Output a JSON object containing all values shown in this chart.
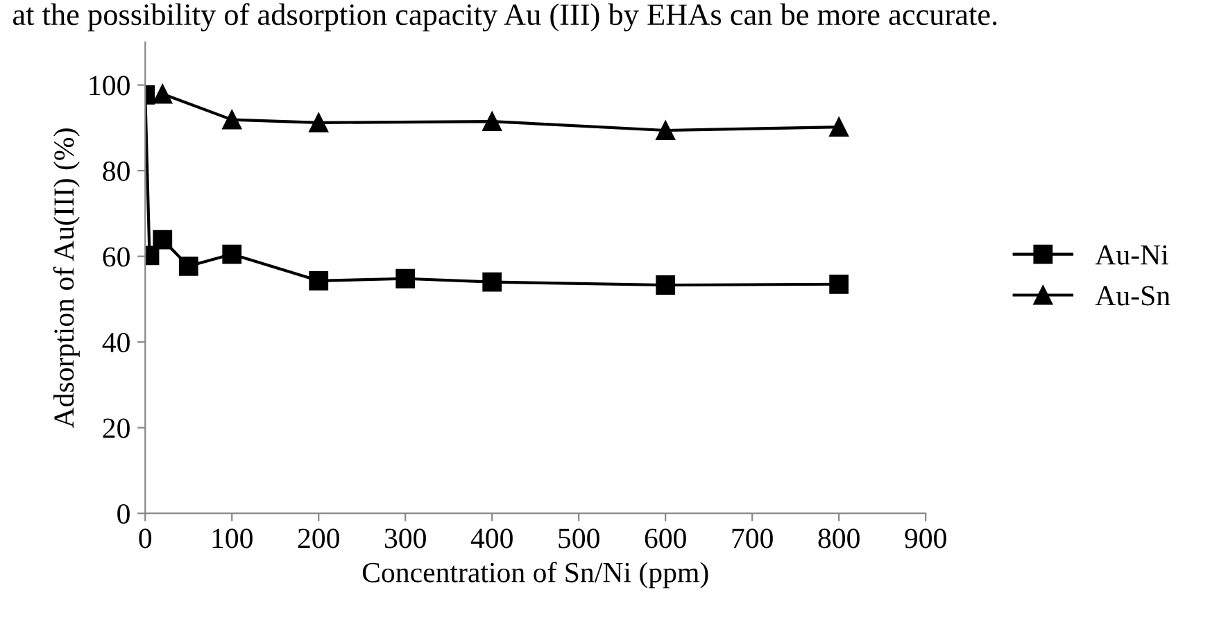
{
  "chart_data": {
    "type": "line",
    "xlabel": "Concentration of Sn/Ni (ppm)",
    "ylabel": "Adsorption of Au(III) (%)",
    "annotations": [
      "at the possibility of adsorption capacity Au (III) by EHAs can be more accurate."
    ],
    "series": [
      {
        "name": "Au-Ni",
        "color": "#000000",
        "marker": "square",
        "x": [
          0,
          5,
          20,
          50,
          100,
          200,
          300,
          400,
          600,
          800
        ],
        "values": [
          97.7,
          60.2,
          63.9,
          57.7,
          60.5,
          54.3,
          54.8,
          54.0,
          53.3,
          53.5
        ]
      },
      {
        "name": "Au-Sn",
        "color": "#000000",
        "marker": "triangle",
        "x": [
          20,
          100,
          200,
          400,
          600,
          800
        ],
        "values": [
          97.9,
          91.9,
          91.2,
          91.5,
          89.4,
          90.2
        ]
      }
    ],
    "xlim": [
      0,
      900
    ],
    "xticks": [
      0,
      100,
      200,
      300,
      400,
      500,
      600,
      700,
      800,
      900
    ],
    "ylim": [
      0,
      110
    ],
    "yticks": [
      0,
      20,
      40,
      60,
      80,
      100
    ],
    "grid": false,
    "legend": "right",
    "line_style": "solid"
  }
}
